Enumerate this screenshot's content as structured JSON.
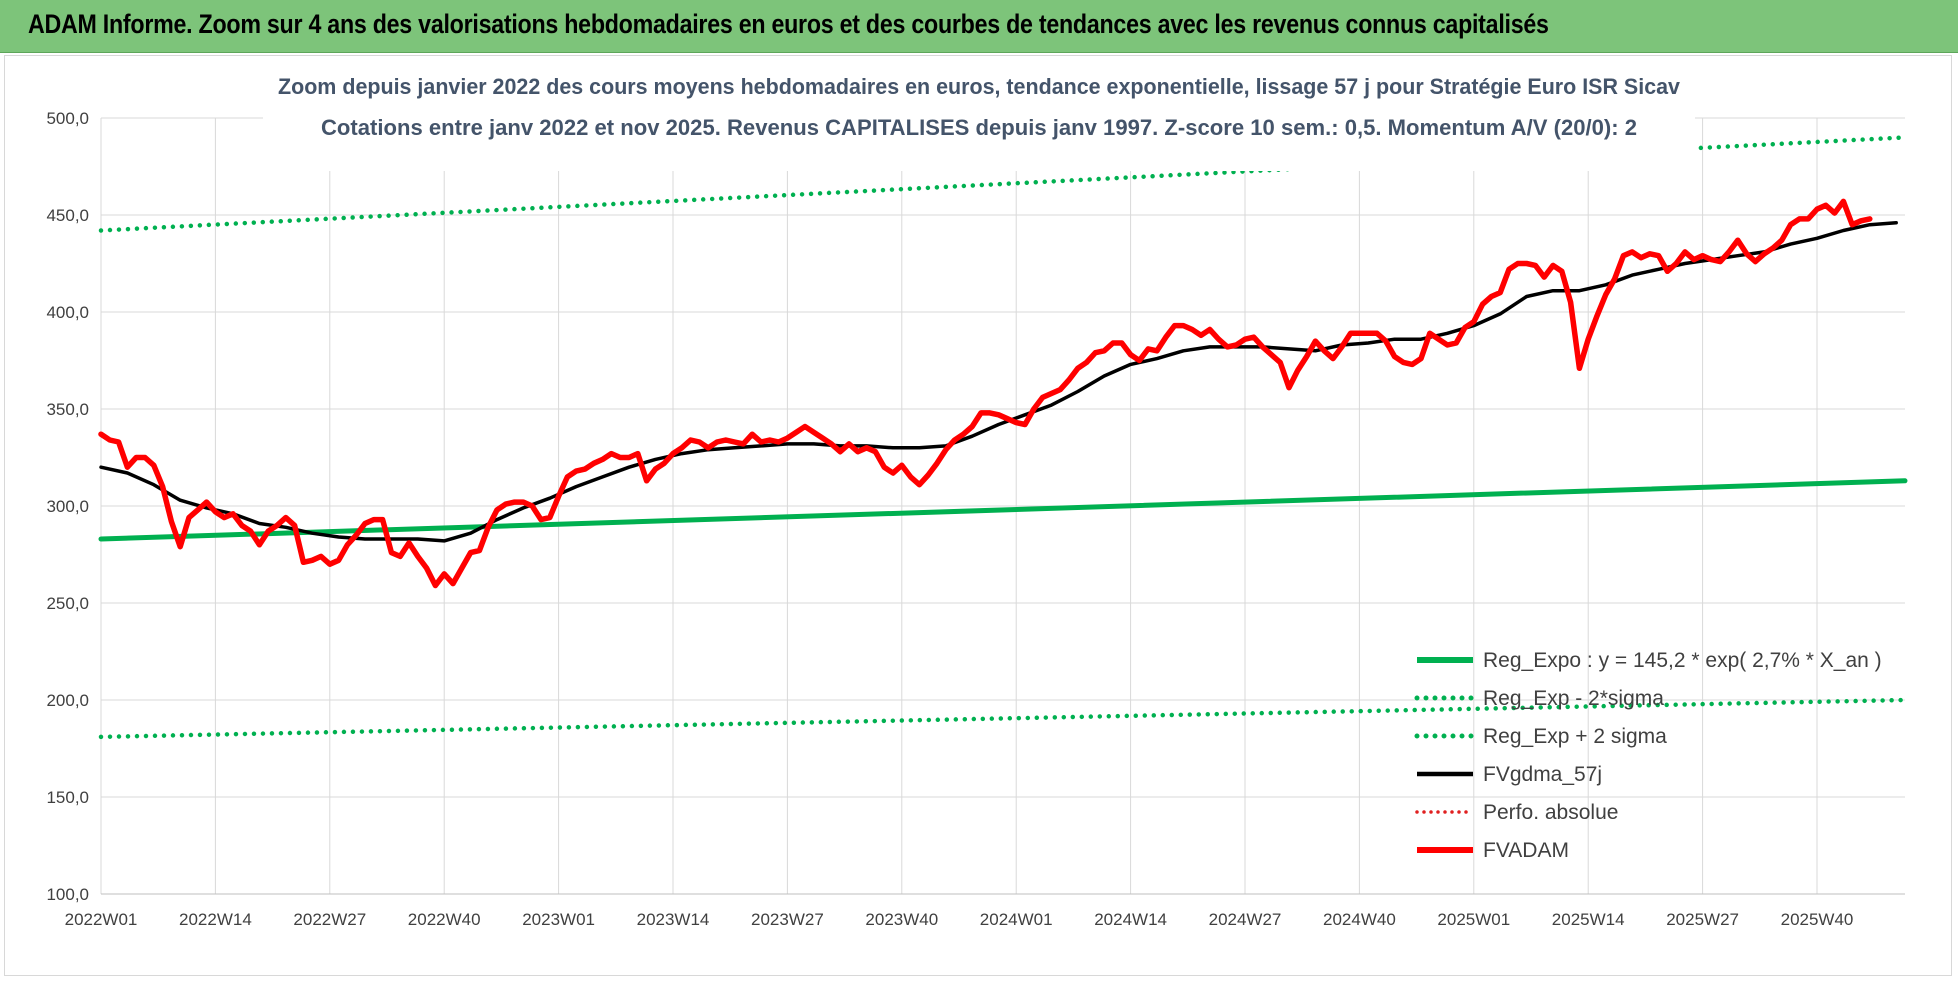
{
  "header": {
    "title": "ADAM Informe. Zoom sur 4 ans des valorisations hebdomadaires en euros et des courbes de tendances avec les revenus connus capitalisés"
  },
  "chart_data": {
    "type": "line",
    "title": "Zoom depuis janvier 2022 des cours moyens hebdomadaires en euros, tendance exponentielle, lissage 57 j pour Stratégie Euro ISR Sicav",
    "subtitle": "Cotations entre janv 2022 et nov 2025. Revenus CAPITALISES depuis janv 1997. Z-score 10 sem.: 0,5. Momentum A/V (20/0): 2",
    "xlabel": "",
    "ylabel": "",
    "ylim": [
      100,
      500
    ],
    "yticks": [
      "100,0",
      "150,0",
      "200,0",
      "250,0",
      "300,0",
      "350,0",
      "400,0",
      "450,0",
      "500,0"
    ],
    "x_tick_labels": [
      "2022W01",
      "2022W14",
      "2022W27",
      "2022W40",
      "2023W01",
      "2023W14",
      "2023W27",
      "2023W40",
      "2024W01",
      "2024W14",
      "2024W27",
      "2024W40",
      "2025W01",
      "2025W14",
      "2025W27",
      "2025W40"
    ],
    "x_tick_weeks": [
      0,
      13,
      26,
      39,
      52,
      65,
      78,
      91,
      104,
      117,
      130,
      143,
      156,
      169,
      182,
      195
    ],
    "x_range_weeks": [
      0,
      205
    ],
    "grid": true,
    "legend_position": "bottom-right",
    "colors": {
      "reg_expo": "#00b050",
      "fvgdma": "#000000",
      "perfo": "#e02020",
      "fvadam": "#ff0000"
    },
    "series": [
      {
        "name": "Reg_Expo : y = 145,2 * exp( 2,7% *  X_an )",
        "style": "solid",
        "color": "#00b050",
        "points": [
          [
            0,
            283
          ],
          [
            205,
            313
          ]
        ]
      },
      {
        "name": "Reg_Exp - 2*sigma",
        "style": "dotted",
        "color": "#00b050",
        "points": [
          [
            0,
            181
          ],
          [
            205,
            200
          ]
        ]
      },
      {
        "name": "Reg_Exp + 2 sigma",
        "style": "dotted",
        "color": "#00b050",
        "points": [
          [
            0,
            442
          ],
          [
            205,
            490
          ]
        ]
      },
      {
        "name": "FVgdma_57j",
        "style": "solid",
        "color": "#000000",
        "points": [
          [
            0,
            320
          ],
          [
            3,
            317
          ],
          [
            6,
            311
          ],
          [
            9,
            303
          ],
          [
            12,
            299
          ],
          [
            15,
            296
          ],
          [
            18,
            291
          ],
          [
            21,
            289
          ],
          [
            24,
            286
          ],
          [
            27,
            284
          ],
          [
            30,
            283
          ],
          [
            33,
            283
          ],
          [
            36,
            283
          ],
          [
            39,
            282
          ],
          [
            42,
            286
          ],
          [
            45,
            293
          ],
          [
            48,
            299
          ],
          [
            51,
            304
          ],
          [
            54,
            310
          ],
          [
            57,
            315
          ],
          [
            60,
            320
          ],
          [
            63,
            324
          ],
          [
            66,
            327
          ],
          [
            69,
            329
          ],
          [
            72,
            330
          ],
          [
            75,
            331
          ],
          [
            78,
            332
          ],
          [
            81,
            332
          ],
          [
            84,
            331
          ],
          [
            87,
            331
          ],
          [
            90,
            330
          ],
          [
            93,
            330
          ],
          [
            96,
            331
          ],
          [
            99,
            336
          ],
          [
            102,
            342
          ],
          [
            105,
            347
          ],
          [
            108,
            352
          ],
          [
            111,
            359
          ],
          [
            114,
            367
          ],
          [
            117,
            373
          ],
          [
            120,
            376
          ],
          [
            123,
            380
          ],
          [
            126,
            382
          ],
          [
            129,
            382
          ],
          [
            132,
            382
          ],
          [
            135,
            381
          ],
          [
            138,
            380
          ],
          [
            141,
            383
          ],
          [
            144,
            384
          ],
          [
            147,
            386
          ],
          [
            150,
            386
          ],
          [
            153,
            389
          ],
          [
            156,
            393
          ],
          [
            159,
            399
          ],
          [
            162,
            408
          ],
          [
            165,
            411
          ],
          [
            168,
            411
          ],
          [
            171,
            414
          ],
          [
            174,
            419
          ],
          [
            177,
            422
          ],
          [
            180,
            425
          ],
          [
            183,
            427
          ],
          [
            186,
            429
          ],
          [
            189,
            431
          ],
          [
            192,
            435
          ],
          [
            195,
            438
          ],
          [
            198,
            442
          ],
          [
            201,
            445
          ],
          [
            204,
            446
          ]
        ]
      },
      {
        "name": "Perfo. absolue",
        "style": "dotted",
        "color": "#e02020",
        "points": []
      },
      {
        "name": "FVADAM",
        "style": "solid",
        "color": "#ff0000",
        "points": [
          [
            0,
            337
          ],
          [
            1,
            334
          ],
          [
            2,
            333
          ],
          [
            3,
            320
          ],
          [
            4,
            325
          ],
          [
            5,
            325
          ],
          [
            6,
            321
          ],
          [
            7,
            310
          ],
          [
            8,
            292
          ],
          [
            9,
            279
          ],
          [
            10,
            294
          ],
          [
            11,
            298
          ],
          [
            12,
            302
          ],
          [
            13,
            297
          ],
          [
            14,
            294
          ],
          [
            15,
            296
          ],
          [
            16,
            290
          ],
          [
            17,
            287
          ],
          [
            18,
            280
          ],
          [
            19,
            287
          ],
          [
            20,
            290
          ],
          [
            21,
            294
          ],
          [
            22,
            290
          ],
          [
            23,
            271
          ],
          [
            24,
            272
          ],
          [
            25,
            274
          ],
          [
            26,
            270
          ],
          [
            27,
            272
          ],
          [
            28,
            280
          ],
          [
            29,
            285
          ],
          [
            30,
            291
          ],
          [
            31,
            293
          ],
          [
            32,
            293
          ],
          [
            33,
            276
          ],
          [
            34,
            274
          ],
          [
            35,
            281
          ],
          [
            36,
            274
          ],
          [
            37,
            268
          ],
          [
            38,
            259
          ],
          [
            39,
            265
          ],
          [
            40,
            260
          ],
          [
            41,
            268
          ],
          [
            42,
            276
          ],
          [
            43,
            277
          ],
          [
            44,
            289
          ],
          [
            45,
            298
          ],
          [
            46,
            301
          ],
          [
            47,
            302
          ],
          [
            48,
            302
          ],
          [
            49,
            300
          ],
          [
            50,
            293
          ],
          [
            51,
            294
          ],
          [
            52,
            305
          ],
          [
            53,
            315
          ],
          [
            54,
            318
          ],
          [
            55,
            319
          ],
          [
            56,
            322
          ],
          [
            57,
            324
          ],
          [
            58,
            327
          ],
          [
            59,
            325
          ],
          [
            60,
            325
          ],
          [
            61,
            327
          ],
          [
            62,
            313
          ],
          [
            63,
            319
          ],
          [
            64,
            322
          ],
          [
            65,
            327
          ],
          [
            66,
            330
          ],
          [
            67,
            334
          ],
          [
            68,
            333
          ],
          [
            69,
            330
          ],
          [
            70,
            333
          ],
          [
            71,
            334
          ],
          [
            72,
            333
          ],
          [
            73,
            332
          ],
          [
            74,
            337
          ],
          [
            75,
            333
          ],
          [
            76,
            334
          ],
          [
            77,
            333
          ],
          [
            78,
            335
          ],
          [
            79,
            338
          ],
          [
            80,
            341
          ],
          [
            81,
            338
          ],
          [
            82,
            335
          ],
          [
            83,
            332
          ],
          [
            84,
            328
          ],
          [
            85,
            332
          ],
          [
            86,
            328
          ],
          [
            87,
            330
          ],
          [
            88,
            328
          ],
          [
            89,
            320
          ],
          [
            90,
            317
          ],
          [
            91,
            321
          ],
          [
            92,
            315
          ],
          [
            93,
            311
          ],
          [
            94,
            316
          ],
          [
            95,
            322
          ],
          [
            96,
            329
          ],
          [
            97,
            334
          ],
          [
            98,
            337
          ],
          [
            99,
            341
          ],
          [
            100,
            348
          ],
          [
            101,
            348
          ],
          [
            102,
            347
          ],
          [
            103,
            345
          ],
          [
            104,
            343
          ],
          [
            105,
            342
          ],
          [
            106,
            350
          ],
          [
            107,
            356
          ],
          [
            108,
            358
          ],
          [
            109,
            360
          ],
          [
            110,
            365
          ],
          [
            111,
            371
          ],
          [
            112,
            374
          ],
          [
            113,
            379
          ],
          [
            114,
            380
          ],
          [
            115,
            384
          ],
          [
            116,
            384
          ],
          [
            117,
            378
          ],
          [
            118,
            375
          ],
          [
            119,
            381
          ],
          [
            120,
            380
          ],
          [
            121,
            387
          ],
          [
            122,
            393
          ],
          [
            123,
            393
          ],
          [
            124,
            391
          ],
          [
            125,
            388
          ],
          [
            126,
            391
          ],
          [
            127,
            386
          ],
          [
            128,
            382
          ],
          [
            129,
            383
          ],
          [
            130,
            386
          ],
          [
            131,
            387
          ],
          [
            132,
            382
          ],
          [
            133,
            378
          ],
          [
            134,
            374
          ],
          [
            135,
            361
          ],
          [
            136,
            370
          ],
          [
            137,
            377
          ],
          [
            138,
            385
          ],
          [
            139,
            380
          ],
          [
            140,
            376
          ],
          [
            141,
            382
          ],
          [
            142,
            389
          ],
          [
            143,
            389
          ],
          [
            144,
            389
          ],
          [
            145,
            389
          ],
          [
            146,
            385
          ],
          [
            147,
            377
          ],
          [
            148,
            374
          ],
          [
            149,
            373
          ],
          [
            150,
            376
          ],
          [
            151,
            389
          ],
          [
            152,
            386
          ],
          [
            153,
            383
          ],
          [
            154,
            384
          ],
          [
            155,
            392
          ],
          [
            156,
            395
          ],
          [
            157,
            404
          ],
          [
            158,
            408
          ],
          [
            159,
            410
          ],
          [
            160,
            422
          ],
          [
            161,
            425
          ],
          [
            162,
            425
          ],
          [
            163,
            424
          ],
          [
            164,
            418
          ],
          [
            165,
            424
          ],
          [
            166,
            421
          ],
          [
            167,
            405
          ],
          [
            168,
            371
          ],
          [
            169,
            386
          ],
          [
            170,
            398
          ],
          [
            171,
            409
          ],
          [
            172,
            417
          ],
          [
            173,
            429
          ],
          [
            174,
            431
          ],
          [
            175,
            428
          ],
          [
            176,
            430
          ],
          [
            177,
            429
          ],
          [
            178,
            421
          ],
          [
            179,
            425
          ],
          [
            180,
            431
          ],
          [
            181,
            427
          ],
          [
            182,
            429
          ],
          [
            183,
            427
          ],
          [
            184,
            426
          ],
          [
            185,
            431
          ],
          [
            186,
            437
          ],
          [
            187,
            430
          ],
          [
            188,
            426
          ],
          [
            189,
            430
          ],
          [
            190,
            433
          ],
          [
            191,
            437
          ],
          [
            192,
            445
          ],
          [
            193,
            448
          ],
          [
            194,
            448
          ],
          [
            195,
            453
          ],
          [
            196,
            455
          ],
          [
            197,
            451
          ],
          [
            198,
            457
          ],
          [
            199,
            445
          ],
          [
            200,
            447
          ],
          [
            201,
            448
          ]
        ]
      }
    ]
  }
}
